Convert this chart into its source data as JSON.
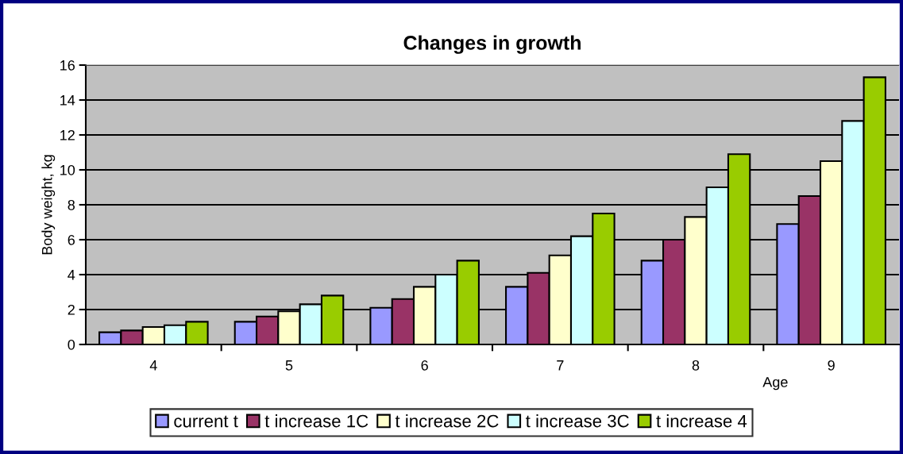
{
  "chart_data": {
    "type": "bar",
    "title": "Changes in growth",
    "xlabel": "Age",
    "ylabel": "Body weight, kg",
    "categories": [
      "4",
      "5",
      "6",
      "7",
      "8",
      "9"
    ],
    "series": [
      {
        "name": "current t",
        "color": "#9999ff",
        "values": [
          0.7,
          1.3,
          2.1,
          3.3,
          4.8,
          6.9
        ]
      },
      {
        "name": "t increase 1C",
        "color": "#993366",
        "values": [
          0.8,
          1.6,
          2.6,
          4.1,
          6.0,
          8.5
        ]
      },
      {
        "name": "t increase 2C",
        "color": "#ffffcc",
        "values": [
          1.0,
          1.9,
          3.3,
          5.1,
          7.3,
          10.5
        ]
      },
      {
        "name": "t increase 3C",
        "color": "#ccffff",
        "values": [
          1.1,
          2.3,
          4.0,
          6.2,
          9.0,
          12.8
        ]
      },
      {
        "name": "t increase 4",
        "color": "#99cc00",
        "values": [
          1.3,
          2.8,
          4.8,
          7.5,
          10.9,
          15.3
        ]
      }
    ],
    "ylim": [
      0,
      16
    ],
    "yticks": [
      0,
      2,
      4,
      6,
      8,
      10,
      12,
      14,
      16
    ],
    "grid": "y",
    "legend": "bottom"
  }
}
